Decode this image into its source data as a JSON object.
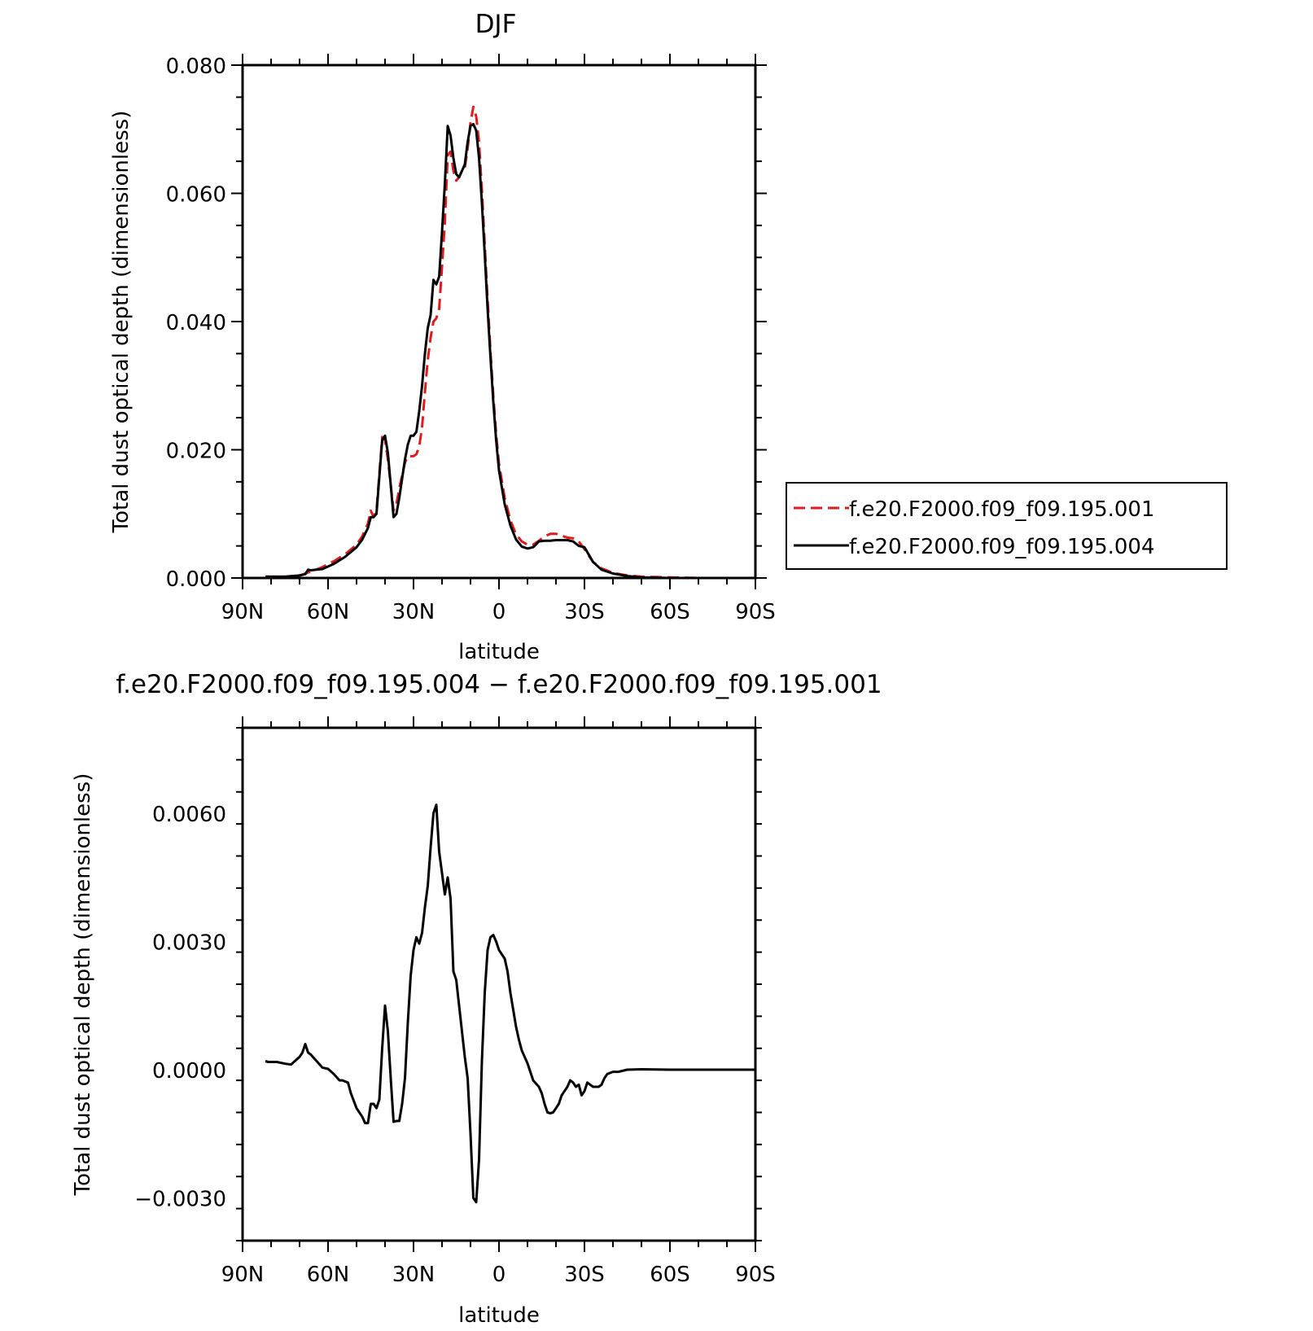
{
  "chart_data": [
    {
      "type": "line",
      "title": "DJF",
      "xlabel": "latitude",
      "ylabel": "Total dust optical depth (dimensionless)",
      "xlim": [
        90,
        -90
      ],
      "ylim": [
        0,
        0.08
      ],
      "x_ticks": [
        90,
        60,
        30,
        0,
        -30,
        -60,
        -90
      ],
      "x_tick_labels": [
        "90N",
        "60N",
        "30N",
        "0",
        "30S",
        "60S",
        "90S"
      ],
      "y_ticks": [
        0,
        0.02,
        0.04,
        0.06,
        0.08
      ],
      "y_tick_labels": [
        "0.000",
        "0.020",
        "0.040",
        "0.060",
        "0.080"
      ],
      "legend_position": "right",
      "series": [
        {
          "name": "f.e20.F2000.f09_f09.195.001",
          "color": "#e31a1c",
          "dash": "dashed",
          "x": [
            82,
            75,
            70,
            66,
            62,
            58,
            54,
            50,
            48,
            46,
            45,
            44,
            43,
            41,
            40,
            39,
            38,
            37,
            36,
            35,
            34,
            33,
            32,
            30,
            29,
            28,
            27,
            26,
            25,
            24,
            23,
            22,
            21,
            20,
            19,
            18,
            17,
            16,
            15,
            14,
            13,
            12,
            11,
            10,
            9,
            8,
            7,
            6,
            5,
            4,
            3,
            2,
            1,
            0,
            -2,
            -4,
            -6,
            -8,
            -10,
            -12,
            -14,
            -16,
            -18,
            -20,
            -22,
            -24,
            -26,
            -28,
            -30,
            -33,
            -36,
            -40,
            -45,
            -50,
            -60,
            -70,
            -80,
            -90
          ],
          "y": [
            0.0002,
            0.0002,
            0.0004,
            0.001,
            0.0017,
            0.0026,
            0.0037,
            0.0052,
            0.0065,
            0.0085,
            0.0105,
            0.0095,
            0.0105,
            0.022,
            0.0215,
            0.0185,
            0.0145,
            0.0105,
            0.0115,
            0.014,
            0.016,
            0.018,
            0.019,
            0.019,
            0.0193,
            0.0205,
            0.0235,
            0.029,
            0.034,
            0.0375,
            0.04,
            0.0405,
            0.042,
            0.0485,
            0.0555,
            0.066,
            0.0665,
            0.0635,
            0.062,
            0.0625,
            0.0635,
            0.064,
            0.067,
            0.071,
            0.0735,
            0.072,
            0.068,
            0.0605,
            0.052,
            0.0435,
            0.0355,
            0.0285,
            0.0225,
            0.0178,
            0.0125,
            0.009,
            0.0068,
            0.0057,
            0.0052,
            0.0052,
            0.0058,
            0.0065,
            0.0069,
            0.0069,
            0.0066,
            0.0063,
            0.0062,
            0.0057,
            0.0045,
            0.0025,
            0.0015,
            0.0008,
            0.0004,
            0.0002,
            0.0001,
            0.0,
            0.0,
            0.0
          ]
        },
        {
          "name": "f.e20.F2000.f09_f09.195.004",
          "color": "#000000",
          "dash": "solid",
          "x": [
            82,
            75,
            70,
            68,
            67,
            66,
            62,
            58,
            54,
            50,
            48,
            46,
            45,
            44,
            43,
            41,
            40,
            39,
            38,
            37,
            36,
            35,
            34,
            33,
            32,
            31,
            30,
            29,
            28,
            27,
            26,
            25,
            24,
            23,
            22,
            21,
            20,
            19,
            18,
            17,
            16,
            15,
            14,
            13,
            12,
            11,
            10,
            9,
            8,
            7,
            6,
            5,
            4,
            3,
            2,
            1,
            0,
            -2,
            -4,
            -6,
            -8,
            -10,
            -12,
            -14,
            -16,
            -18,
            -20,
            -22,
            -24,
            -26,
            -28,
            -30,
            -33,
            -36,
            -40,
            -45,
            -50,
            -60,
            -70,
            -80,
            -90
          ],
          "y": [
            0.0002,
            0.0002,
            0.0004,
            0.0006,
            0.0013,
            0.0012,
            0.0014,
            0.0022,
            0.0033,
            0.0048,
            0.006,
            0.0078,
            0.0095,
            0.0095,
            0.01,
            0.0215,
            0.0222,
            0.0195,
            0.0145,
            0.0095,
            0.01,
            0.0125,
            0.0155,
            0.0185,
            0.0208,
            0.0222,
            0.0222,
            0.0228,
            0.026,
            0.03,
            0.035,
            0.039,
            0.041,
            0.0465,
            0.0458,
            0.047,
            0.054,
            0.0615,
            0.0705,
            0.069,
            0.0655,
            0.063,
            0.0625,
            0.0635,
            0.0645,
            0.068,
            0.0705,
            0.0708,
            0.0698,
            0.0655,
            0.0585,
            0.0505,
            0.042,
            0.0345,
            0.0275,
            0.0215,
            0.0168,
            0.0115,
            0.0082,
            0.006,
            0.0049,
            0.0046,
            0.0048,
            0.0057,
            0.0058,
            0.0058,
            0.0059,
            0.0059,
            0.0059,
            0.0057,
            0.005,
            0.0048,
            0.0025,
            0.0013,
            0.0007,
            0.0003,
            0.0001,
            0.0,
            0.0,
            0.0,
            0.0
          ]
        }
      ]
    },
    {
      "type": "line",
      "title": "f.e20.F2000.f09_f09.195.004 - f.e20.F2000.f09_f09.195.001",
      "xlabel": "latitude",
      "ylabel": "Total dust optical depth (dimensionless)",
      "xlim": [
        90,
        -90
      ],
      "ylim": [
        -0.004,
        0.008
      ],
      "x_ticks": [
        90,
        60,
        30,
        0,
        -30,
        -60,
        -90
      ],
      "x_tick_labels": [
        "90N",
        "60N",
        "30N",
        "0",
        "30S",
        "60S",
        "90S"
      ],
      "y_ticks": [
        -0.003,
        0,
        0.003,
        0.006
      ],
      "y_tick_labels": [
        "-0.0030",
        "0.0000",
        "0.0030",
        "0.0060"
      ],
      "series": [
        {
          "color": "#000000",
          "dash": "solid",
          "x": [
            82,
            81,
            78,
            75,
            73,
            70,
            69,
            68,
            67,
            66,
            64,
            62,
            60,
            58,
            56,
            55,
            53,
            52,
            50,
            48,
            47,
            46,
            45,
            44,
            43,
            42,
            41,
            40,
            39,
            38,
            37,
            36,
            35,
            34,
            33,
            32,
            31,
            30,
            29,
            28,
            27,
            26,
            25,
            24,
            23,
            22,
            21,
            20,
            19,
            18,
            17,
            16,
            15,
            14,
            13,
            12,
            11,
            10,
            9,
            8,
            7,
            6,
            5,
            4,
            3,
            2,
            1,
            0,
            -1,
            -2,
            -3,
            -4,
            -5,
            -6,
            -7,
            -8,
            -9,
            -10,
            -12,
            -14,
            -15,
            -16,
            -17,
            -18,
            -19,
            -20,
            -21,
            -22,
            -23,
            -24,
            -25,
            -26,
            -27,
            -28,
            -29,
            -30,
            -31,
            -32,
            -33,
            -34,
            -35,
            -36,
            -37,
            -38,
            -40,
            -42,
            -45,
            -50,
            -60,
            -70,
            -80,
            -90
          ],
          "y": [
            0.0002,
            0.00018,
            0.00018,
            0.00014,
            0.00012,
            0.0003,
            0.0004,
            0.0006,
            0.0004,
            0.00035,
            0.0002,
            5e-05,
            2e-05,
            -0.0001,
            -0.00025,
            -0.00025,
            -0.0003,
            -0.00055,
            -0.0009,
            -0.0011,
            -0.00125,
            -0.00125,
            -0.0008,
            -0.0008,
            -0.0009,
            -0.0007,
            0.0005,
            0.0015,
            0.0009,
            -0.0002,
            -0.00122,
            -0.0012,
            -0.0012,
            -0.0008,
            -0.0002,
            0.0011,
            0.0022,
            0.0028,
            0.0031,
            0.00295,
            0.0032,
            0.0038,
            0.0043,
            0.0052,
            0.006,
            0.0062,
            0.0051,
            0.0046,
            0.0041,
            0.0045,
            0.004,
            0.0023,
            0.0021,
            0.0015,
            0.0009,
            0.0003,
            -0.0002,
            -0.0015,
            -0.003,
            -0.0031,
            -0.0021,
            0.0002,
            0.0018,
            0.0028,
            0.0031,
            0.00315,
            0.003,
            0.0028,
            0.0027,
            0.0026,
            0.0023,
            0.0018,
            0.0014,
            0.001,
            0.0007,
            0.00045,
            0.0003,
            0.00015,
            -0.00025,
            -0.0004,
            -0.00055,
            -0.0008,
            -0.001,
            -0.00102,
            -0.001,
            -0.0009,
            -0.0008,
            -0.0006,
            -0.0005,
            -0.0004,
            -0.00025,
            -0.0003,
            -0.0004,
            -0.00035,
            -0.0006,
            -0.0005,
            -0.0003,
            -0.00035,
            -0.0004,
            -0.0004,
            -0.0004,
            -0.00035,
            -0.0002,
            -0.0001,
            -5e-05,
            -5e-05,
            0.0,
            1e-05,
            0.0,
            0.0,
            0.0,
            0.0
          ]
        }
      ]
    }
  ]
}
